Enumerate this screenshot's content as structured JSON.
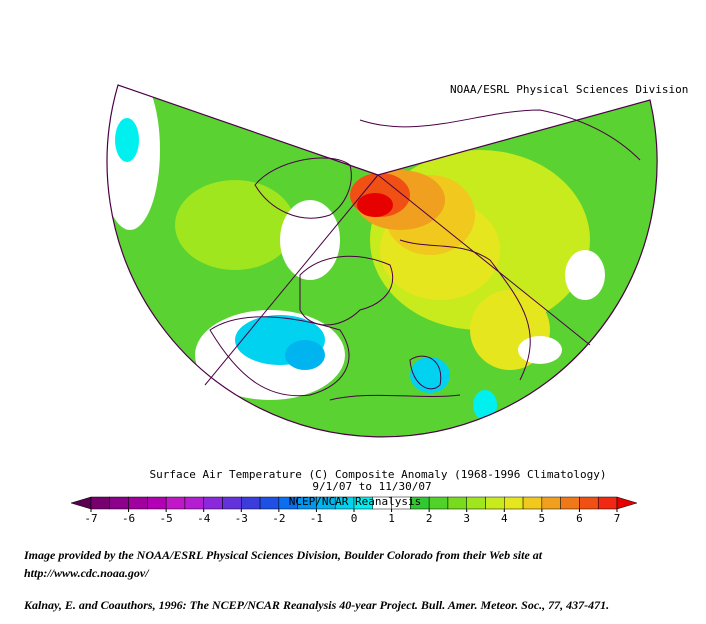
{
  "header": {
    "credit": "NOAA/ESRL Physical Sciences Division"
  },
  "title": "Surface Air Temperature (C) Composite Anomaly (1968-1996 Climatology)",
  "subtitle": "9/1/07  to 11/30/07",
  "source": "NCEP/NCAR Reanalysis",
  "colorbar": {
    "ticks": [
      -7,
      -6,
      -5,
      -4,
      -3,
      -2,
      -1,
      0,
      1,
      2,
      3,
      4,
      5,
      6,
      7
    ],
    "colors": [
      "#5a0050",
      "#78006e",
      "#8c008c",
      "#a0009e",
      "#b400b4",
      "#c018c8",
      "#b41ed2",
      "#8c28dc",
      "#6432dc",
      "#3c3cdc",
      "#1e50e6",
      "#0a6ef0",
      "#0096f0",
      "#00b4f0",
      "#00d2f0",
      "#00f0f0",
      "#ffffff",
      "#ffffff",
      "#32c832",
      "#50d228",
      "#78dc1e",
      "#a0e61e",
      "#c8eb1e",
      "#e6e61e",
      "#f0c81e",
      "#f0a01e",
      "#f07818",
      "#f05014",
      "#f02814",
      "#e60000"
    ]
  },
  "footer": {
    "line1": "Image provided by the NOAA/ESRL Physical Sciences Division, Boulder Colorado from their Web site at",
    "line2": "http://www.cdc.noaa.gov/",
    "citation": "Kalnay, E. and Coauthors, 1996: The NCEP/NCAR Reanalysis 40-year Project. Bull. Amer. Meteor. Soc., 77, 437-471."
  }
}
